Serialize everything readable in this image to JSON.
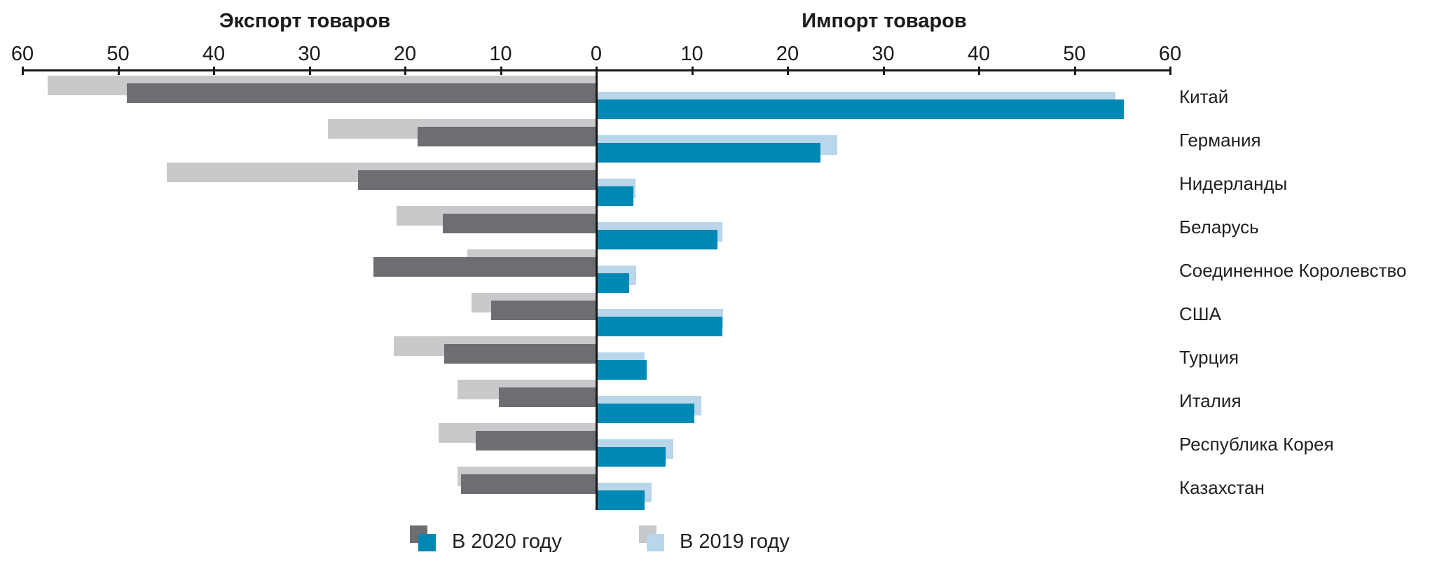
{
  "titles": {
    "export": "Экспорт товаров",
    "import": "Импорт товаров"
  },
  "legend": {
    "item_2020": "В 2020 году",
    "item_2019": "В 2019 году"
  },
  "colors": {
    "export_2020": "#6d6e71",
    "export_2019": "#c8c9ca",
    "import_2020": "#0088b4",
    "import_2019": "#b9d6ea",
    "axis": "#1a1a1a",
    "text": "#231f20"
  },
  "chart_data": {
    "type": "bar",
    "variant": "diverging-horizontal (tornado): exports to the left of zero, imports to the right; 2019 bars drawn behind and offset from 2020 bars",
    "title_left": "Экспорт товаров",
    "title_right": "Импорт товаров",
    "categories": [
      "Китай",
      "Германия",
      "Нидерланды",
      "Беларусь",
      "Соединенное Королевство",
      "США",
      "Турция",
      "Италия",
      "Республика Корея",
      "Казахстан"
    ],
    "series": [
      {
        "name": "Экспорт товаров — В 2020 году",
        "side": "left",
        "year": "2020",
        "values": [
          49.0,
          18.6,
          24.8,
          16.0,
          23.2,
          10.9,
          15.8,
          10.1,
          12.5,
          14.1
        ]
      },
      {
        "name": "Экспорт товаров — В 2019 году",
        "side": "left",
        "year": "2019",
        "values": [
          57.3,
          28.0,
          44.8,
          20.8,
          13.4,
          13.0,
          21.1,
          14.4,
          16.4,
          14.4
        ]
      },
      {
        "name": "Импорт товаров — В 2020 году",
        "side": "right",
        "year": "2020",
        "values": [
          55.1,
          23.4,
          3.8,
          12.6,
          3.4,
          13.1,
          5.2,
          10.2,
          7.2,
          5.0
        ]
      },
      {
        "name": "Импорт товаров — В 2019 году",
        "side": "right",
        "year": "2019",
        "values": [
          54.2,
          25.1,
          4.0,
          13.1,
          4.1,
          13.2,
          5.0,
          10.9,
          8.0,
          5.7
        ]
      }
    ],
    "axis_ticks": [
      60,
      50,
      40,
      30,
      20,
      10,
      0,
      10,
      20,
      30,
      40,
      50,
      60
    ],
    "xlim": [
      -60,
      60
    ],
    "grid": false,
    "legend_position": "bottom",
    "legend_entries": [
      "В 2020 году",
      "В 2019 году"
    ]
  }
}
